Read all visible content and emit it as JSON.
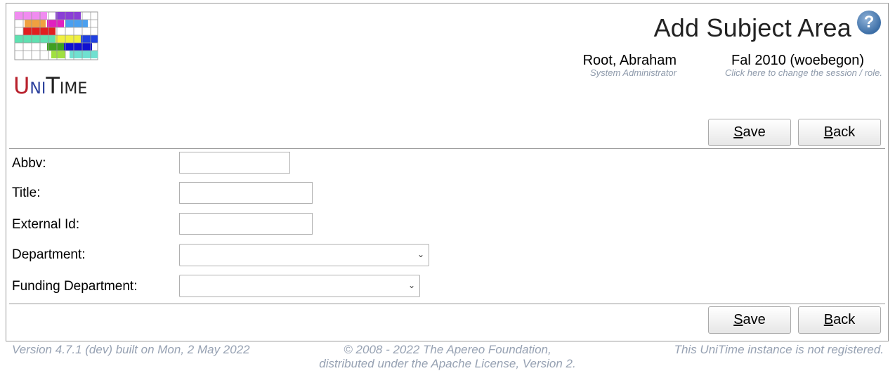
{
  "header": {
    "page_title": "Add Subject Area",
    "help_icon": "question-mark-icon",
    "logo_text": [
      "U",
      "NI",
      "T",
      "IME"
    ],
    "user": {
      "name": "Root, Abraham",
      "role": "System Administrator"
    },
    "session": {
      "name": "Fal 2010 (woebegon)",
      "hint": "Click here to change the session / role."
    }
  },
  "toolbar": {
    "save_label_first": "S",
    "save_label_rest": "ave",
    "back_label_first": "B",
    "back_label_rest": "ack"
  },
  "form": {
    "abbv_label": "Abbv:",
    "abbv_value": "",
    "title_label": "Title:",
    "title_value": "",
    "external_id_label": "External Id:",
    "external_id_value": "",
    "department_label": "Department:",
    "department_value": "",
    "funding_department_label": "Funding Department:",
    "funding_department_value": ""
  },
  "footer": {
    "version": "Version 4.7.1 (dev) built on Mon, 2 May 2022",
    "copyright_line1": "© 2008 - 2022 The Apereo Foundation,",
    "copyright_line2": "distributed under the Apache License, Version 2.",
    "registration": "This UniTime instance is not registered."
  },
  "colors": {
    "accent_blue": "#3c6ea6",
    "footer_text": "#97a2b3",
    "logo_red": "#b8202c",
    "logo_blue": "#2a3f9c"
  }
}
